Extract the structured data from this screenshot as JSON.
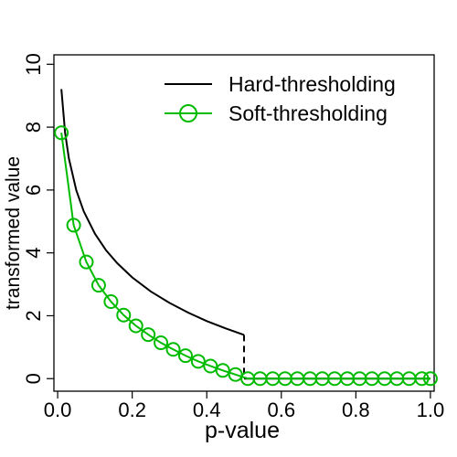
{
  "chart_data": {
    "type": "line",
    "xlabel": "p-value",
    "ylabel": "transformed value",
    "xlim": [
      -0.01,
      1.01
    ],
    "ylim": [
      -0.4,
      10.3
    ],
    "x_ticks": [
      0.0,
      0.2,
      0.4,
      0.6,
      0.8,
      1.0
    ],
    "x_tick_labels": [
      "0.0",
      "0.2",
      "0.4",
      "0.6",
      "0.8",
      "1.0"
    ],
    "y_ticks": [
      0,
      2,
      4,
      6,
      8,
      10
    ],
    "y_tick_labels": [
      "0",
      "2",
      "4",
      "6",
      "8",
      "10"
    ],
    "grid": false,
    "legend_position": "top-right",
    "series": [
      {
        "name": "Hard-thresholding",
        "color": "#000000",
        "marker": "none",
        "x": [
          0.01,
          0.02,
          0.03,
          0.05,
          0.07,
          0.1,
          0.13,
          0.16,
          0.2,
          0.25,
          0.3,
          0.35,
          0.4,
          0.45,
          0.5
        ],
        "y": [
          9.21,
          7.82,
          7.01,
          5.99,
          5.32,
          4.61,
          4.08,
          3.67,
          3.22,
          2.77,
          2.41,
          2.1,
          1.83,
          1.6,
          1.39
        ],
        "drop_at_x": 0.5,
        "drop_to_y": 0,
        "after_drop_y": 0
      },
      {
        "name": "Soft-thresholding",
        "color": "#00bb00",
        "marker": "circle",
        "x": [
          0.01,
          0.043,
          0.077,
          0.11,
          0.143,
          0.177,
          0.21,
          0.243,
          0.277,
          0.31,
          0.343,
          0.377,
          0.41,
          0.443,
          0.477,
          0.51,
          0.543,
          0.577,
          0.61,
          0.643,
          0.677,
          0.71,
          0.743,
          0.777,
          0.81,
          0.843,
          0.877,
          0.91,
          0.943,
          0.977,
          1.0
        ],
        "y": [
          7.82,
          4.88,
          3.71,
          2.97,
          2.45,
          2.02,
          1.68,
          1.4,
          1.14,
          0.93,
          0.73,
          0.55,
          0.4,
          0.26,
          0.13,
          0,
          0,
          0,
          0,
          0,
          0,
          0,
          0,
          0,
          0,
          0,
          0,
          0,
          0,
          0,
          0
        ]
      }
    ]
  }
}
